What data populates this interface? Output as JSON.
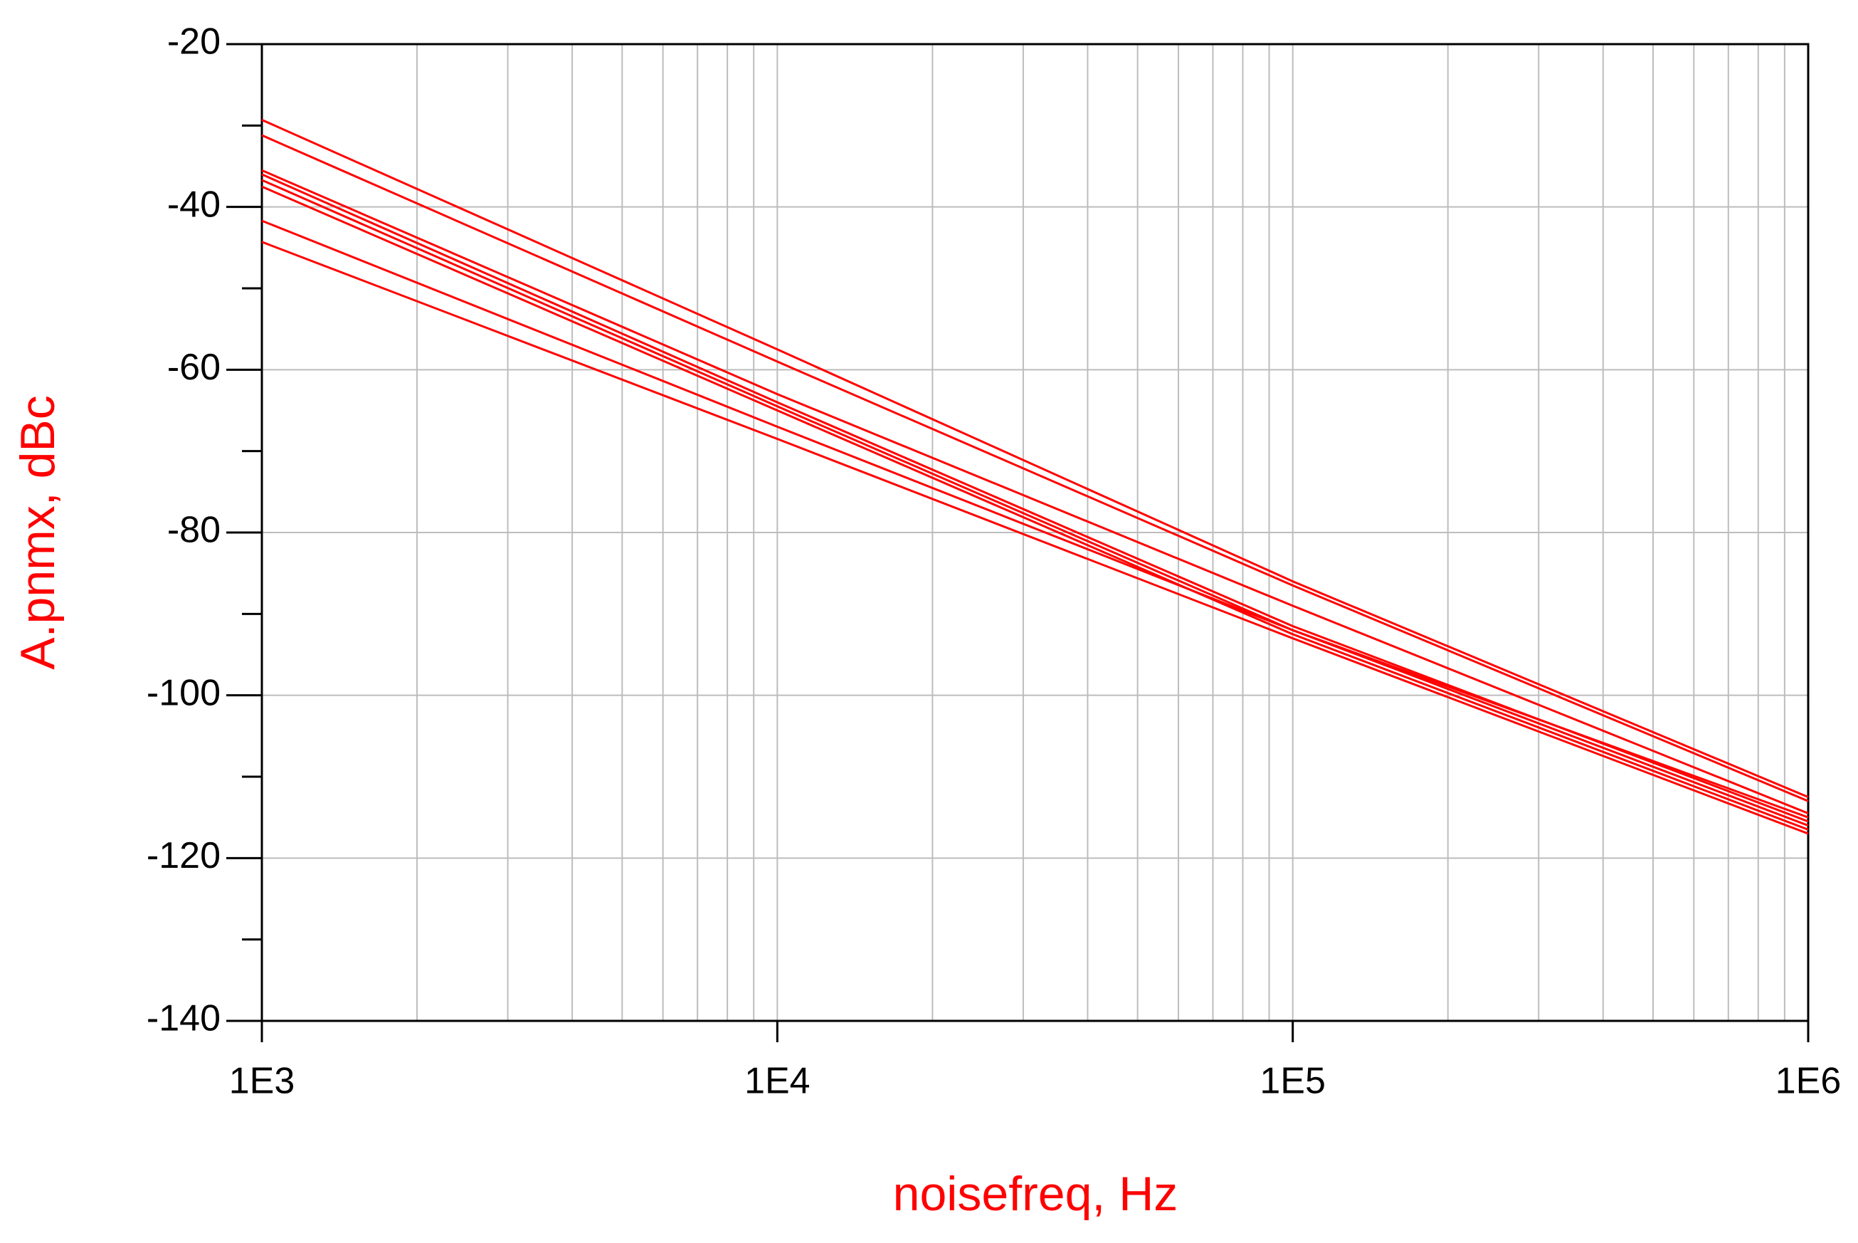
{
  "chart_data": {
    "type": "line",
    "x_label": "noisefreq, Hz",
    "y_label": "A.pnmx, dBc",
    "x": [
      1000,
      10000,
      100000,
      1000000
    ],
    "series": [
      {
        "color": "#ff0000",
        "values": [
          -29.3,
          -57.5,
          -86,
          -112.5
        ]
      },
      {
        "color": "#ff0000",
        "values": [
          -31.2,
          -59,
          -86.5,
          -113
        ]
      },
      {
        "color": "#ff0000",
        "values": [
          -35.5,
          -63,
          -89,
          -114.5
        ]
      },
      {
        "color": "#ff0000",
        "values": [
          -36,
          -64,
          -91.5,
          -115.5
        ]
      },
      {
        "color": "#ff0000",
        "values": [
          -36.7,
          -64.5,
          -92,
          -116
        ]
      },
      {
        "color": "#ff0000",
        "values": [
          -37.5,
          -65,
          -92.5,
          -116.5
        ]
      },
      {
        "color": "#ff0000",
        "values": [
          -41.7,
          -67,
          -92,
          -115
        ]
      },
      {
        "color": "#ff0000",
        "values": [
          -44.3,
          -68.5,
          -93,
          -117
        ]
      }
    ],
    "xlog": true,
    "xlim": [
      1000,
      1000000
    ],
    "xticks": [
      {
        "value": 1000,
        "label": "1E3"
      },
      {
        "value": 10000,
        "label": "1E4"
      },
      {
        "value": 100000,
        "label": "1E5"
      },
      {
        "value": 1000000,
        "label": "1E6"
      }
    ],
    "x_minor_ticks": [
      2000,
      3000,
      4000,
      5000,
      6000,
      7000,
      8000,
      9000,
      20000,
      30000,
      40000,
      50000,
      60000,
      70000,
      80000,
      90000,
      200000,
      300000,
      400000,
      500000,
      600000,
      700000,
      800000,
      900000
    ],
    "ylim": [
      -140,
      -20
    ],
    "yticks": [
      -140,
      -120,
      -100,
      -80,
      -60,
      -40,
      -20
    ],
    "y_minor_ticks": [
      -130,
      -110,
      -90,
      -70,
      -50,
      -30
    ],
    "grid": true
  }
}
